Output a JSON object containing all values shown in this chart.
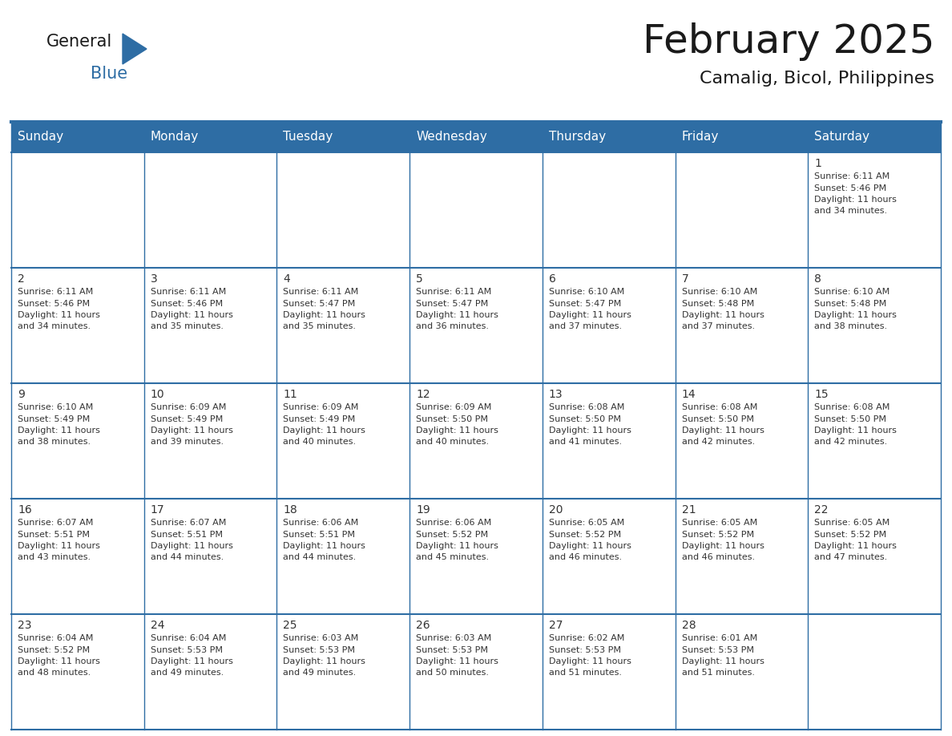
{
  "title": "February 2025",
  "subtitle": "Camalig, Bicol, Philippines",
  "header_bg": "#2E6DA4",
  "header_text_color": "#FFFFFF",
  "cell_bg_white": "#FFFFFF",
  "cell_bg_gray": "#F0F0F0",
  "cell_border": "#2E6DA4",
  "day_names": [
    "Sunday",
    "Monday",
    "Tuesday",
    "Wednesday",
    "Thursday",
    "Friday",
    "Saturday"
  ],
  "days_data": [
    {
      "day": 1,
      "col": 6,
      "row": 0,
      "sunrise": "6:11 AM",
      "sunset": "5:46 PM",
      "daylight_line1": "11 hours",
      "daylight_line2": "and 34 minutes."
    },
    {
      "day": 2,
      "col": 0,
      "row": 1,
      "sunrise": "6:11 AM",
      "sunset": "5:46 PM",
      "daylight_line1": "11 hours",
      "daylight_line2": "and 34 minutes."
    },
    {
      "day": 3,
      "col": 1,
      "row": 1,
      "sunrise": "6:11 AM",
      "sunset": "5:46 PM",
      "daylight_line1": "11 hours",
      "daylight_line2": "and 35 minutes."
    },
    {
      "day": 4,
      "col": 2,
      "row": 1,
      "sunrise": "6:11 AM",
      "sunset": "5:47 PM",
      "daylight_line1": "11 hours",
      "daylight_line2": "and 35 minutes."
    },
    {
      "day": 5,
      "col": 3,
      "row": 1,
      "sunrise": "6:11 AM",
      "sunset": "5:47 PM",
      "daylight_line1": "11 hours",
      "daylight_line2": "and 36 minutes."
    },
    {
      "day": 6,
      "col": 4,
      "row": 1,
      "sunrise": "6:10 AM",
      "sunset": "5:47 PM",
      "daylight_line1": "11 hours",
      "daylight_line2": "and 37 minutes."
    },
    {
      "day": 7,
      "col": 5,
      "row": 1,
      "sunrise": "6:10 AM",
      "sunset": "5:48 PM",
      "daylight_line1": "11 hours",
      "daylight_line2": "and 37 minutes."
    },
    {
      "day": 8,
      "col": 6,
      "row": 1,
      "sunrise": "6:10 AM",
      "sunset": "5:48 PM",
      "daylight_line1": "11 hours",
      "daylight_line2": "and 38 minutes."
    },
    {
      "day": 9,
      "col": 0,
      "row": 2,
      "sunrise": "6:10 AM",
      "sunset": "5:49 PM",
      "daylight_line1": "11 hours",
      "daylight_line2": "and 38 minutes."
    },
    {
      "day": 10,
      "col": 1,
      "row": 2,
      "sunrise": "6:09 AM",
      "sunset": "5:49 PM",
      "daylight_line1": "11 hours",
      "daylight_line2": "and 39 minutes."
    },
    {
      "day": 11,
      "col": 2,
      "row": 2,
      "sunrise": "6:09 AM",
      "sunset": "5:49 PM",
      "daylight_line1": "11 hours",
      "daylight_line2": "and 40 minutes."
    },
    {
      "day": 12,
      "col": 3,
      "row": 2,
      "sunrise": "6:09 AM",
      "sunset": "5:50 PM",
      "daylight_line1": "11 hours",
      "daylight_line2": "and 40 minutes."
    },
    {
      "day": 13,
      "col": 4,
      "row": 2,
      "sunrise": "6:08 AM",
      "sunset": "5:50 PM",
      "daylight_line1": "11 hours",
      "daylight_line2": "and 41 minutes."
    },
    {
      "day": 14,
      "col": 5,
      "row": 2,
      "sunrise": "6:08 AM",
      "sunset": "5:50 PM",
      "daylight_line1": "11 hours",
      "daylight_line2": "and 42 minutes."
    },
    {
      "day": 15,
      "col": 6,
      "row": 2,
      "sunrise": "6:08 AM",
      "sunset": "5:50 PM",
      "daylight_line1": "11 hours",
      "daylight_line2": "and 42 minutes."
    },
    {
      "day": 16,
      "col": 0,
      "row": 3,
      "sunrise": "6:07 AM",
      "sunset": "5:51 PM",
      "daylight_line1": "11 hours",
      "daylight_line2": "and 43 minutes."
    },
    {
      "day": 17,
      "col": 1,
      "row": 3,
      "sunrise": "6:07 AM",
      "sunset": "5:51 PM",
      "daylight_line1": "11 hours",
      "daylight_line2": "and 44 minutes."
    },
    {
      "day": 18,
      "col": 2,
      "row": 3,
      "sunrise": "6:06 AM",
      "sunset": "5:51 PM",
      "daylight_line1": "11 hours",
      "daylight_line2": "and 44 minutes."
    },
    {
      "day": 19,
      "col": 3,
      "row": 3,
      "sunrise": "6:06 AM",
      "sunset": "5:52 PM",
      "daylight_line1": "11 hours",
      "daylight_line2": "and 45 minutes."
    },
    {
      "day": 20,
      "col": 4,
      "row": 3,
      "sunrise": "6:05 AM",
      "sunset": "5:52 PM",
      "daylight_line1": "11 hours",
      "daylight_line2": "and 46 minutes."
    },
    {
      "day": 21,
      "col": 5,
      "row": 3,
      "sunrise": "6:05 AM",
      "sunset": "5:52 PM",
      "daylight_line1": "11 hours",
      "daylight_line2": "and 46 minutes."
    },
    {
      "day": 22,
      "col": 6,
      "row": 3,
      "sunrise": "6:05 AM",
      "sunset": "5:52 PM",
      "daylight_line1": "11 hours",
      "daylight_line2": "and 47 minutes."
    },
    {
      "day": 23,
      "col": 0,
      "row": 4,
      "sunrise": "6:04 AM",
      "sunset": "5:52 PM",
      "daylight_line1": "11 hours",
      "daylight_line2": "and 48 minutes."
    },
    {
      "day": 24,
      "col": 1,
      "row": 4,
      "sunrise": "6:04 AM",
      "sunset": "5:53 PM",
      "daylight_line1": "11 hours",
      "daylight_line2": "and 49 minutes."
    },
    {
      "day": 25,
      "col": 2,
      "row": 4,
      "sunrise": "6:03 AM",
      "sunset": "5:53 PM",
      "daylight_line1": "11 hours",
      "daylight_line2": "and 49 minutes."
    },
    {
      "day": 26,
      "col": 3,
      "row": 4,
      "sunrise": "6:03 AM",
      "sunset": "5:53 PM",
      "daylight_line1": "11 hours",
      "daylight_line2": "and 50 minutes."
    },
    {
      "day": 27,
      "col": 4,
      "row": 4,
      "sunrise": "6:02 AM",
      "sunset": "5:53 PM",
      "daylight_line1": "11 hours",
      "daylight_line2": "and 51 minutes."
    },
    {
      "day": 28,
      "col": 5,
      "row": 4,
      "sunrise": "6:01 AM",
      "sunset": "5:53 PM",
      "daylight_line1": "11 hours",
      "daylight_line2": "and 51 minutes."
    }
  ],
  "logo_text_general": "General",
  "logo_text_blue": "Blue",
  "logo_color_general": "#1a1a1a",
  "logo_color_blue": "#2E6DA4",
  "logo_triangle_color": "#2E6DA4",
  "background_color": "#FFFFFF",
  "num_rows": 5,
  "num_cols": 7,
  "cell_text_color": "#333333",
  "cell_day_num_color": "#333333",
  "divider_color": "#2E6DA4",
  "title_fontsize": 36,
  "subtitle_fontsize": 16,
  "dayname_fontsize": 11,
  "daynum_fontsize": 10,
  "cell_info_fontsize": 8
}
